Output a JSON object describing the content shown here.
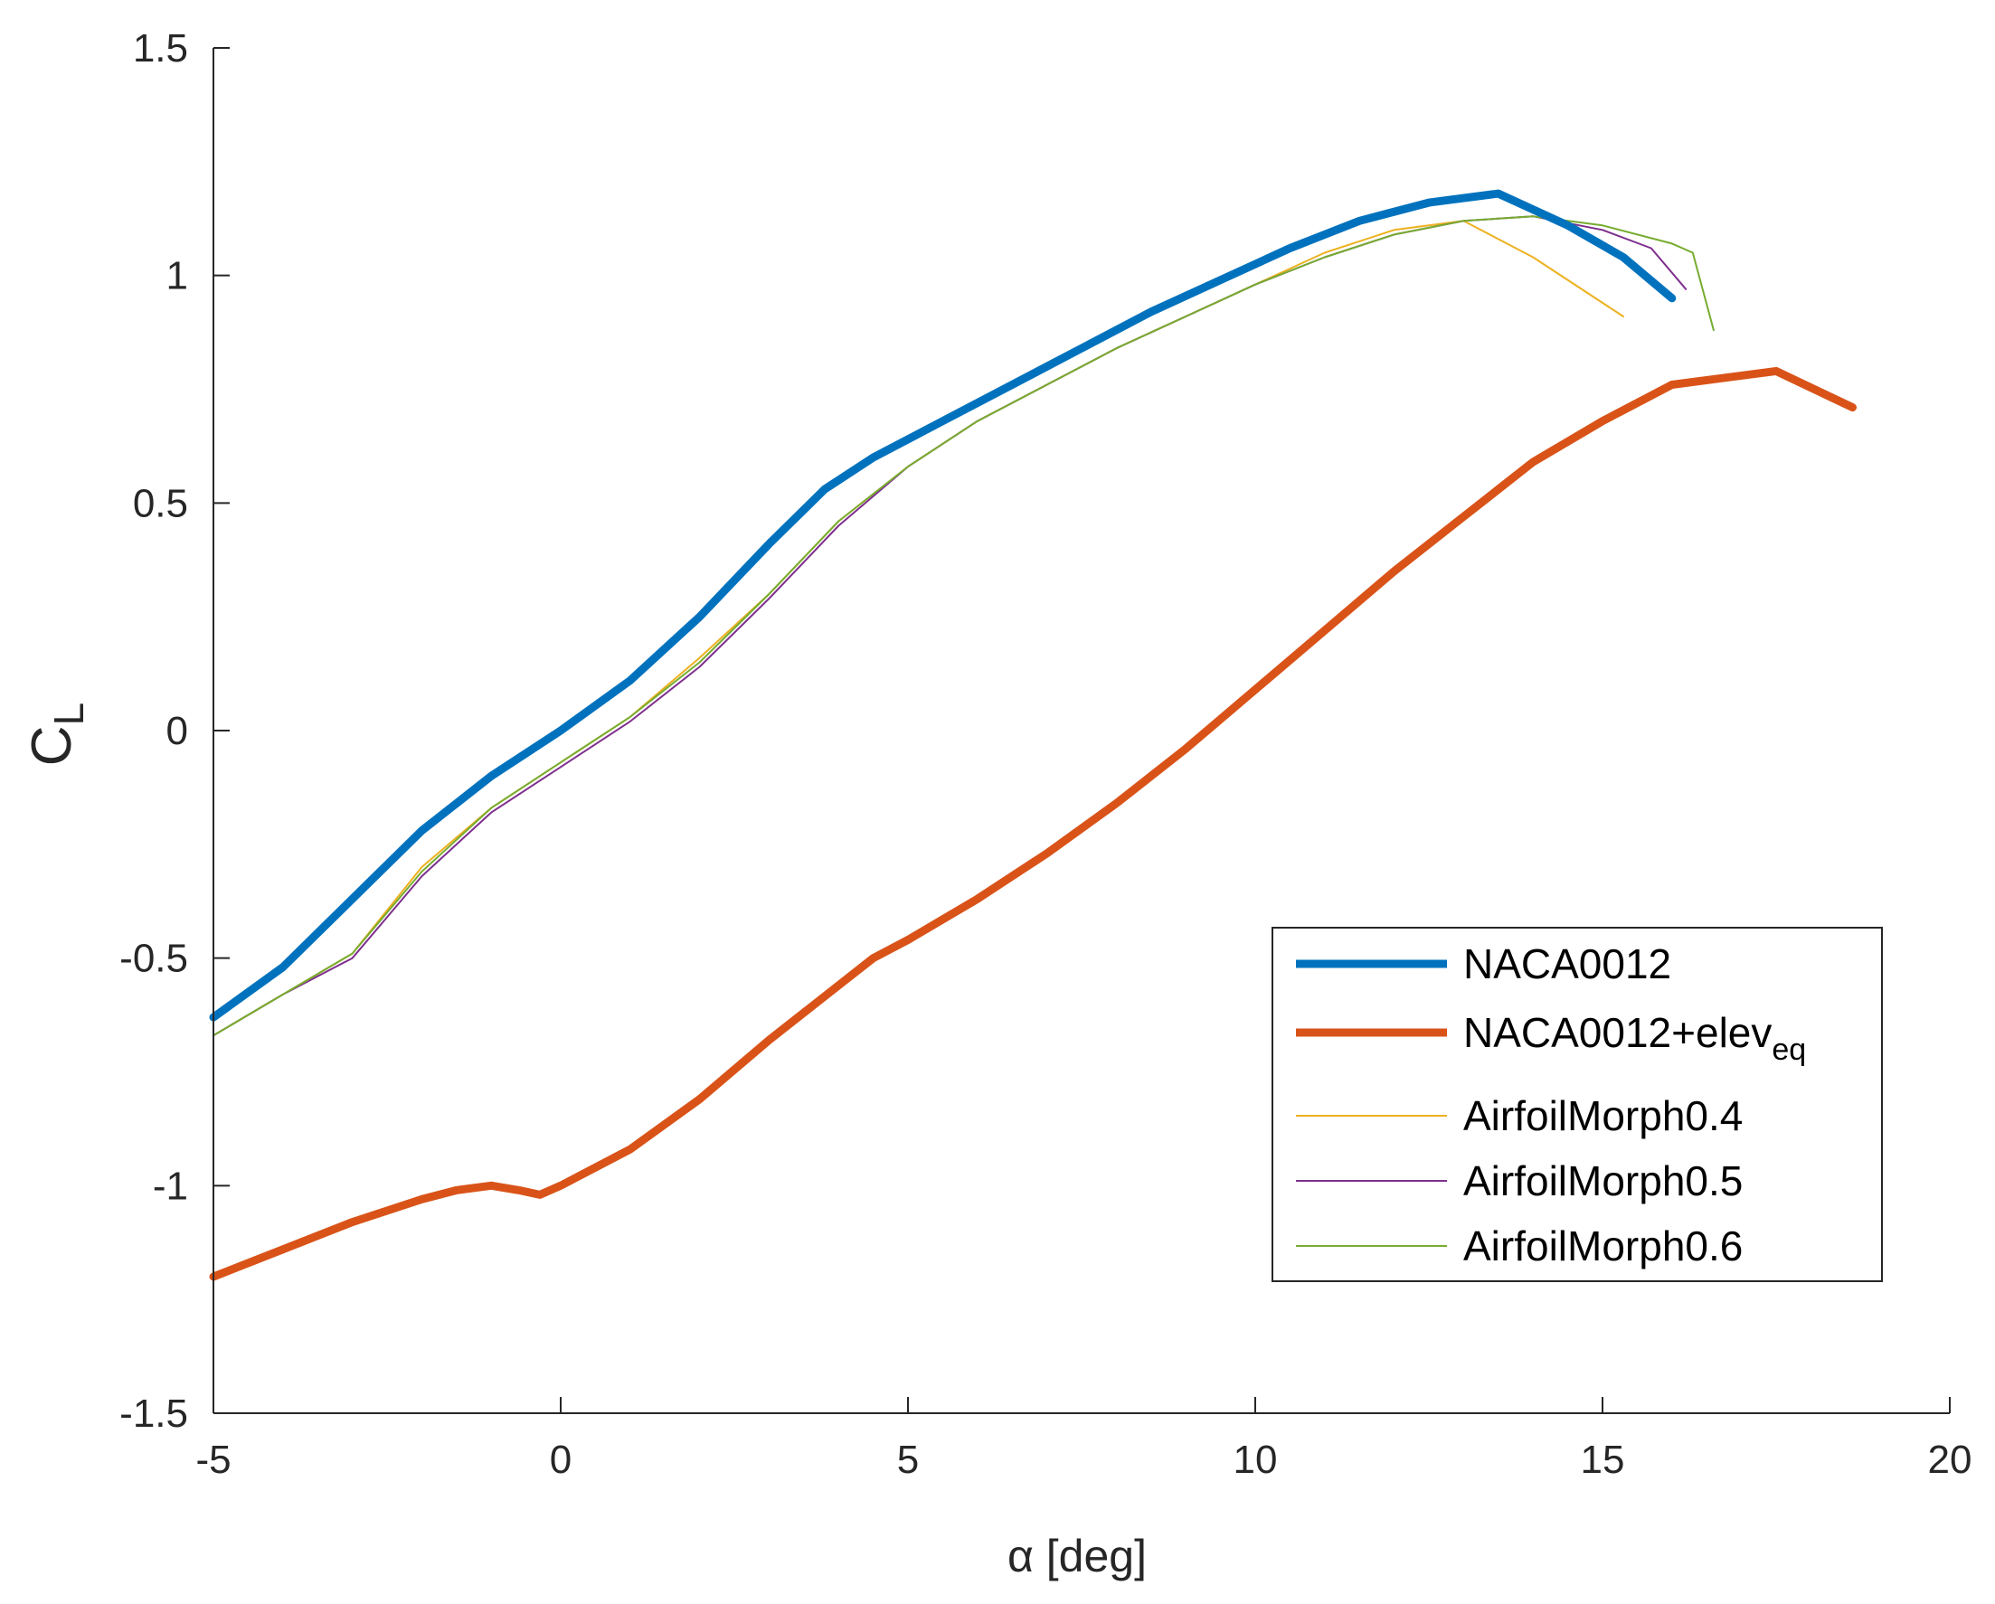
{
  "chart_data": {
    "type": "line",
    "title": "",
    "xlabel": "α [deg]",
    "ylabel": {
      "base": "C",
      "sub": "L"
    },
    "xlim": [
      -5,
      20
    ],
    "ylim": [
      -1.5,
      1.5
    ],
    "xticks": [
      "-5",
      "0",
      "5",
      "10",
      "15",
      "20"
    ],
    "yticks": [
      "1.5",
      "1",
      "0.5",
      "0",
      "-0.5",
      "-1",
      "-1.5"
    ],
    "grid": false,
    "legend_position": "bottom-right",
    "series": [
      {
        "name": "NACA0012",
        "label": {
          "base": "NACA0012",
          "sub": ""
        },
        "color": "#0072BD",
        "weight": "thick",
        "x": [
          -5,
          -4,
          -3,
          -2,
          -1,
          0,
          1,
          2,
          3,
          3.8,
          4.5,
          5.5,
          6.5,
          7.5,
          8.5,
          9.5,
          10.5,
          11.5,
          12.5,
          13.5,
          14.5,
          15.3,
          16
        ],
        "y": [
          -0.63,
          -0.52,
          -0.37,
          -0.22,
          -0.1,
          0.0,
          0.11,
          0.25,
          0.41,
          0.53,
          0.6,
          0.68,
          0.76,
          0.84,
          0.92,
          0.99,
          1.06,
          1.12,
          1.16,
          1.18,
          1.11,
          1.04,
          0.95
        ]
      },
      {
        "name": "NACA0012+elev_eq",
        "label": {
          "base": "NACA0012+elev",
          "sub": "eq"
        },
        "color": "#D95319",
        "weight": "thick",
        "x": [
          -5,
          -4,
          -3,
          -2,
          -1.5,
          -1,
          -0.6,
          -0.3,
          0,
          1,
          2,
          3,
          4,
          4.5,
          5,
          6,
          7,
          8,
          9,
          10,
          11,
          12,
          13,
          14,
          15,
          16,
          17.5,
          18.6
        ],
        "y": [
          -1.2,
          -1.14,
          -1.08,
          -1.03,
          -1.01,
          -1.0,
          -1.01,
          -1.02,
          -1.0,
          -0.92,
          -0.81,
          -0.68,
          -0.56,
          -0.5,
          -0.46,
          -0.37,
          -0.27,
          -0.16,
          -0.04,
          0.09,
          0.22,
          0.35,
          0.47,
          0.59,
          0.68,
          0.76,
          0.79,
          0.71
        ]
      },
      {
        "name": "AirfoilMorph0.4",
        "label": {
          "base": "AirfoilMorph0.4",
          "sub": ""
        },
        "color": "#EDB120",
        "weight": "thin",
        "x": [
          -5,
          -4,
          -3,
          -2,
          -1,
          0,
          1,
          2,
          3,
          4,
          5,
          6,
          7,
          8,
          9,
          10,
          11,
          12,
          13,
          14,
          15.3
        ],
        "y": [
          -0.67,
          -0.58,
          -0.49,
          -0.3,
          -0.17,
          -0.07,
          0.03,
          0.16,
          0.3,
          0.46,
          0.58,
          0.68,
          0.76,
          0.84,
          0.91,
          0.98,
          1.05,
          1.1,
          1.12,
          1.04,
          0.91
        ]
      },
      {
        "name": "AirfoilMorph0.5",
        "label": {
          "base": "AirfoilMorph0.5",
          "sub": ""
        },
        "color": "#7E2F8E",
        "weight": "thin",
        "x": [
          -5,
          -4,
          -3,
          -2,
          -1,
          0,
          1,
          2,
          3,
          4,
          5,
          6,
          7,
          8,
          9,
          10,
          11,
          12,
          13,
          14,
          15,
          15.7,
          16.2
        ],
        "y": [
          -0.67,
          -0.58,
          -0.5,
          -0.32,
          -0.18,
          -0.08,
          0.02,
          0.14,
          0.29,
          0.45,
          0.58,
          0.68,
          0.76,
          0.84,
          0.91,
          0.98,
          1.04,
          1.09,
          1.12,
          1.13,
          1.1,
          1.06,
          0.97
        ]
      },
      {
        "name": "AirfoilMorph0.6",
        "label": {
          "base": "AirfoilMorph0.6",
          "sub": ""
        },
        "color": "#77AC30",
        "weight": "thin",
        "x": [
          -5,
          -4,
          -3,
          -2,
          -1,
          0,
          1,
          2,
          3,
          4,
          5,
          6,
          7,
          8,
          9,
          10,
          11,
          12,
          13,
          14,
          15,
          16,
          16.3,
          16.6
        ],
        "y": [
          -0.67,
          -0.58,
          -0.49,
          -0.31,
          -0.17,
          -0.07,
          0.03,
          0.15,
          0.3,
          0.46,
          0.58,
          0.68,
          0.76,
          0.84,
          0.91,
          0.98,
          1.04,
          1.09,
          1.12,
          1.13,
          1.11,
          1.07,
          1.05,
          0.88
        ]
      }
    ]
  }
}
